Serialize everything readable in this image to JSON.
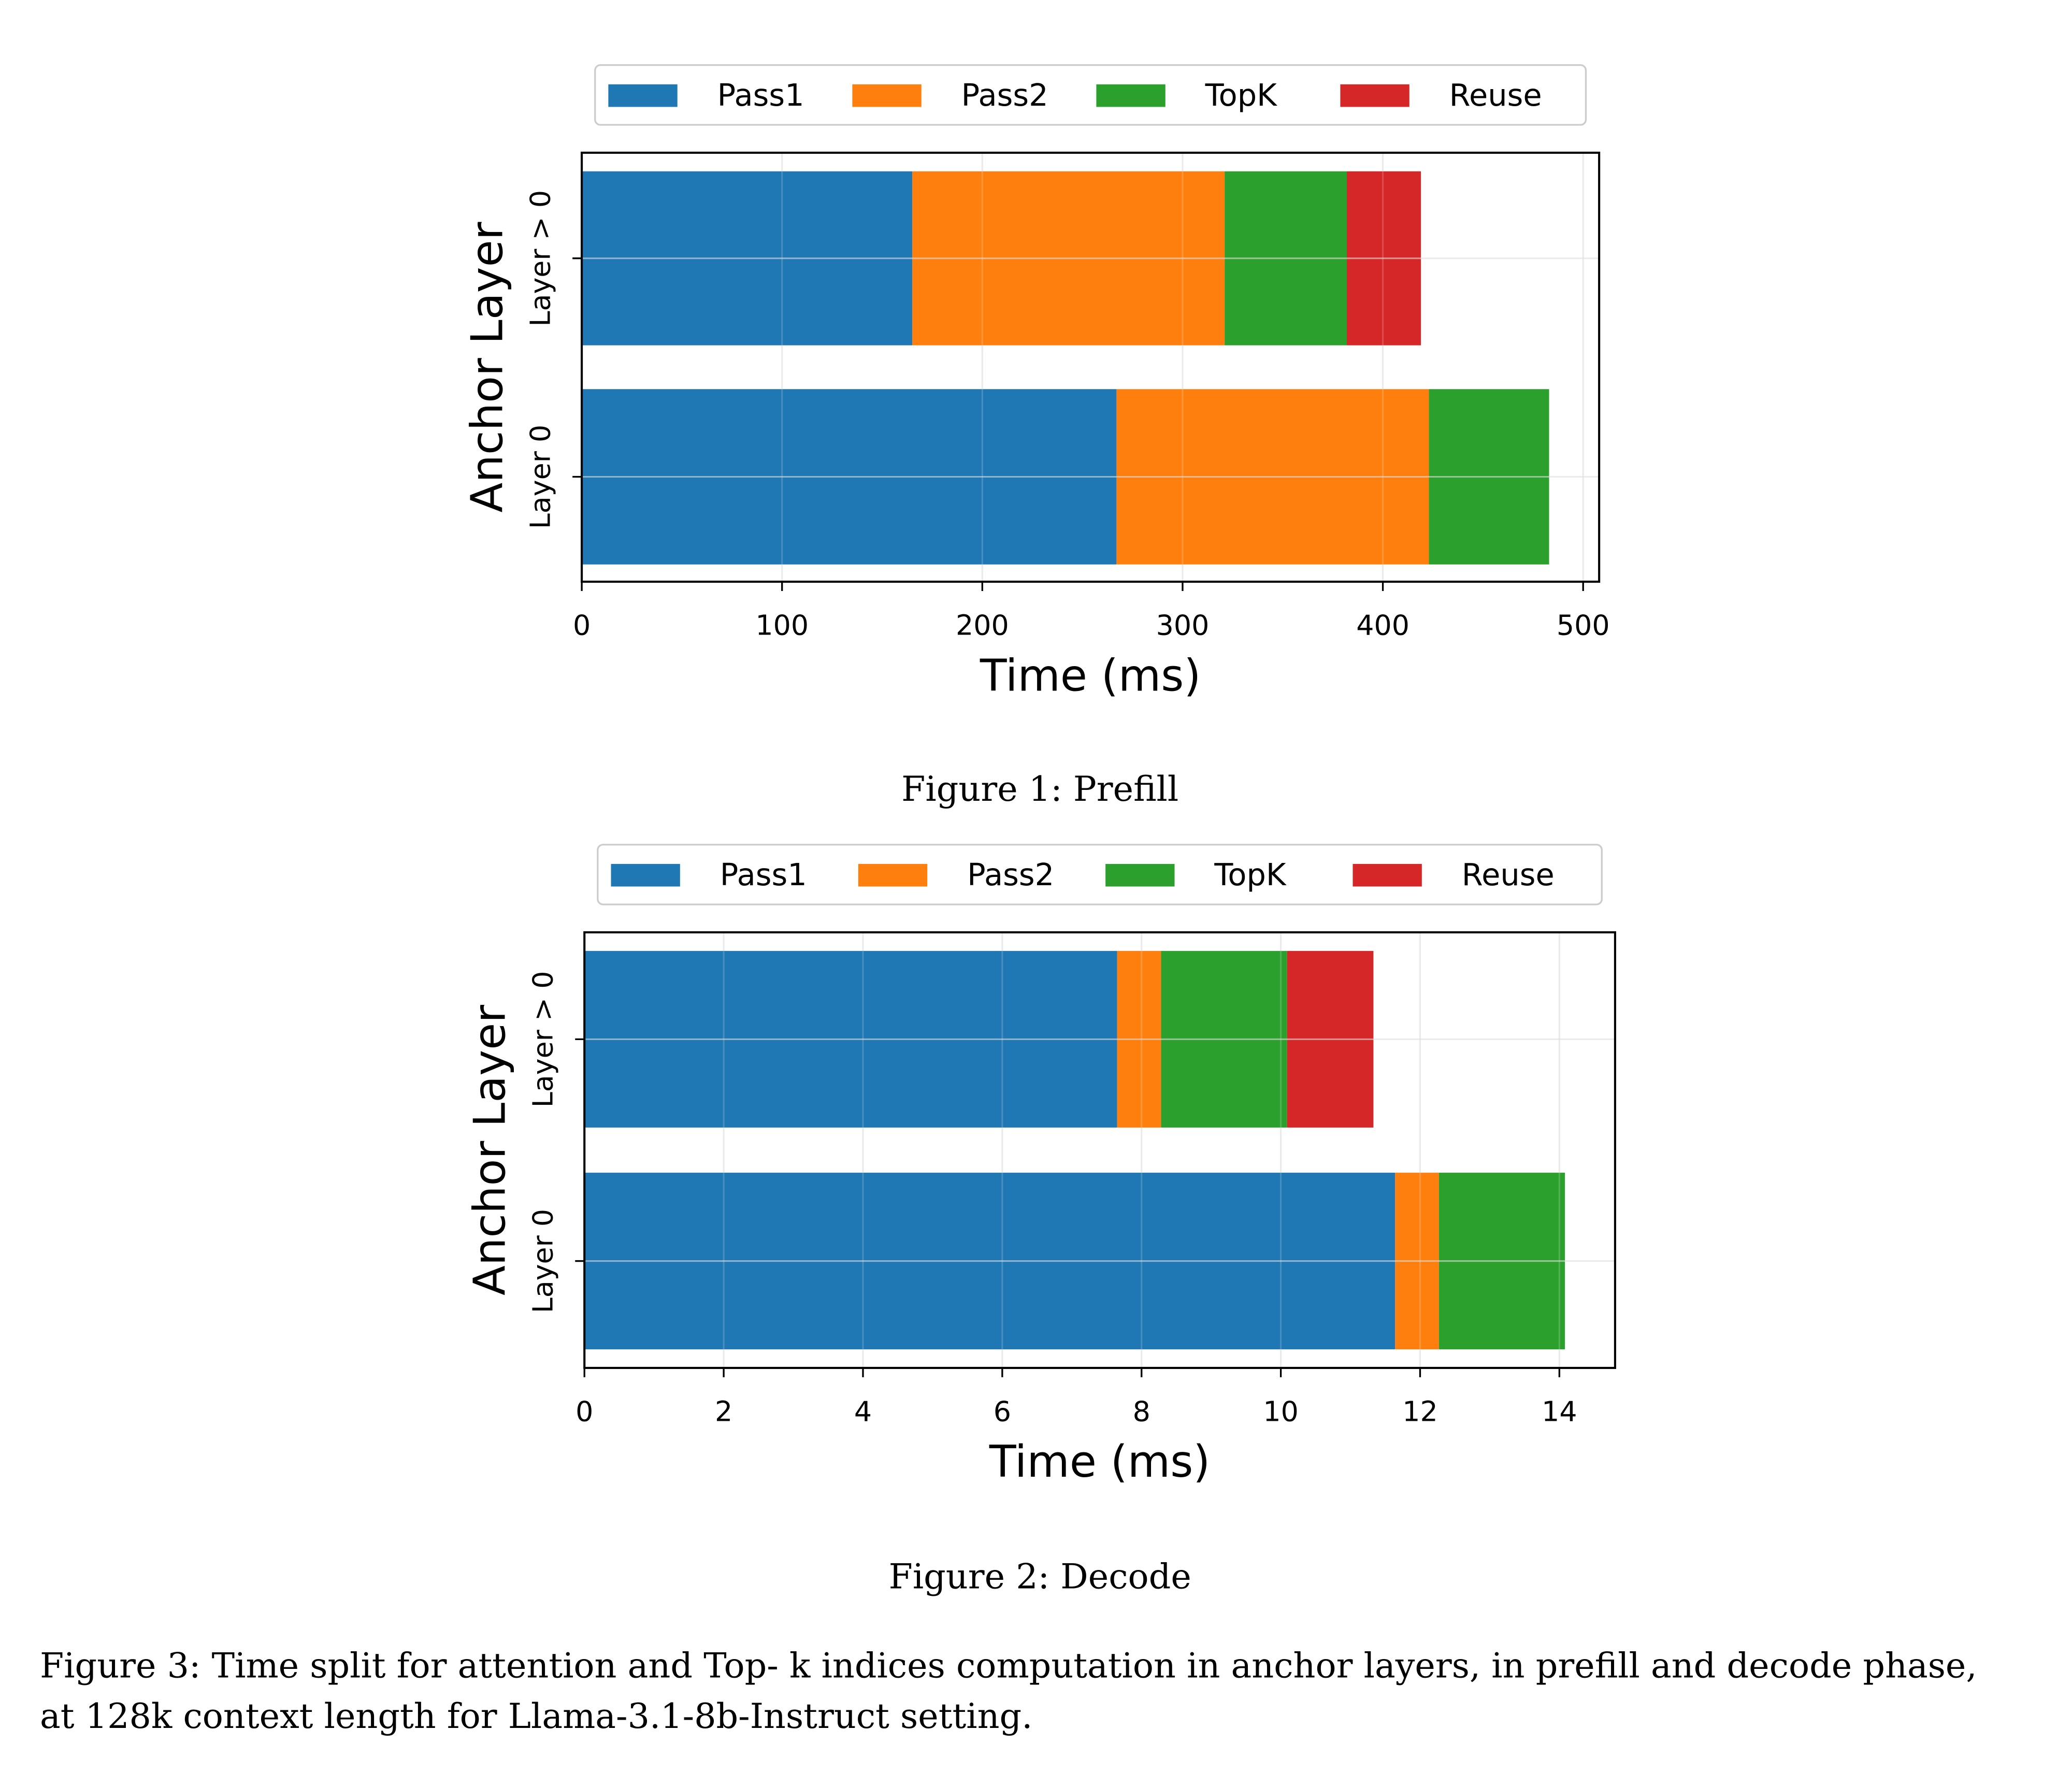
{
  "colors": {
    "Pass1": "#1f77b4",
    "Pass2": "#ff7f0e",
    "TopK": "#2ca02c",
    "Reuse": "#d62728"
  },
  "chart_data": [
    {
      "type": "bar",
      "orientation": "horizontal-stacked",
      "caption": "Figure 1: Prefill",
      "xlabel": "Time (ms)",
      "ylabel": "Anchor Layer",
      "categories": [
        "Layer 0",
        "Layer > 0"
      ],
      "xlim": [
        0,
        508
      ],
      "xticks": [
        0,
        100,
        200,
        300,
        400,
        500
      ],
      "grid": true,
      "legend": "top, outside, 4 columns",
      "series": [
        {
          "name": "Pass1",
          "values": [
            267,
            165
          ]
        },
        {
          "name": "Pass2",
          "values": [
            156,
            156
          ]
        },
        {
          "name": "TopK",
          "values": [
            60,
            61
          ]
        },
        {
          "name": "Reuse",
          "values": [
            0,
            37
          ]
        }
      ]
    },
    {
      "type": "bar",
      "orientation": "horizontal-stacked",
      "caption": "Figure 2: Decode",
      "xlabel": "Time (ms)",
      "ylabel": "Anchor Layer",
      "categories": [
        "Layer 0",
        "Layer > 0"
      ],
      "xlim": [
        0,
        14.8
      ],
      "xticks": [
        0,
        2,
        4,
        6,
        8,
        10,
        12,
        14
      ],
      "grid": true,
      "legend": "top, outside, 4 columns",
      "series": [
        {
          "name": "Pass1",
          "values": [
            11.64,
            7.65
          ]
        },
        {
          "name": "Pass2",
          "values": [
            0.63,
            0.63
          ]
        },
        {
          "name": "TopK",
          "values": [
            1.81,
            1.81
          ]
        },
        {
          "name": "Reuse",
          "values": [
            0,
            1.24
          ]
        }
      ]
    }
  ],
  "figure_caption": {
    "line1": "Figure 3: Time split for attention and Top- k indices computation in anchor layers, in prefill and decode phase,",
    "line2": "at 128k context length for Llama-3.1-8b-Instruct setting."
  }
}
